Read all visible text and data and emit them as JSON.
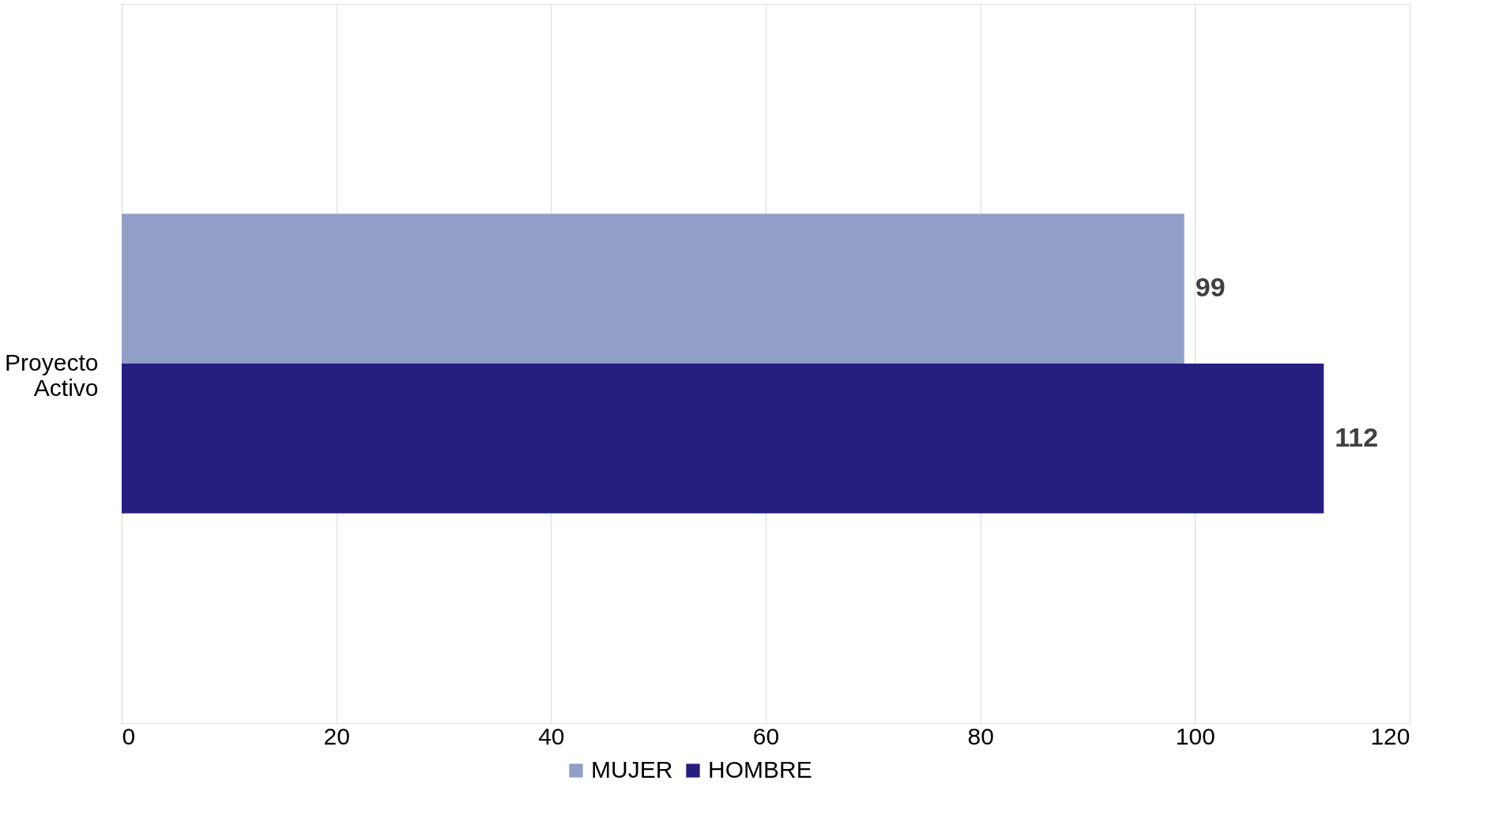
{
  "chart_data": {
    "type": "bar",
    "orientation": "horizontal",
    "categories": [
      "Proyecto Activo"
    ],
    "series": [
      {
        "name": "MUJER",
        "color": "#919ec7",
        "values": [
          99
        ]
      },
      {
        "name": "HOMBRE",
        "color": "#271f80",
        "values": [
          112
        ]
      }
    ],
    "xlim": [
      0,
      120
    ],
    "xticks": [
      0,
      20,
      40,
      60,
      80,
      100,
      120
    ],
    "grid": "x",
    "data_labels": true,
    "legend": "bottom"
  }
}
